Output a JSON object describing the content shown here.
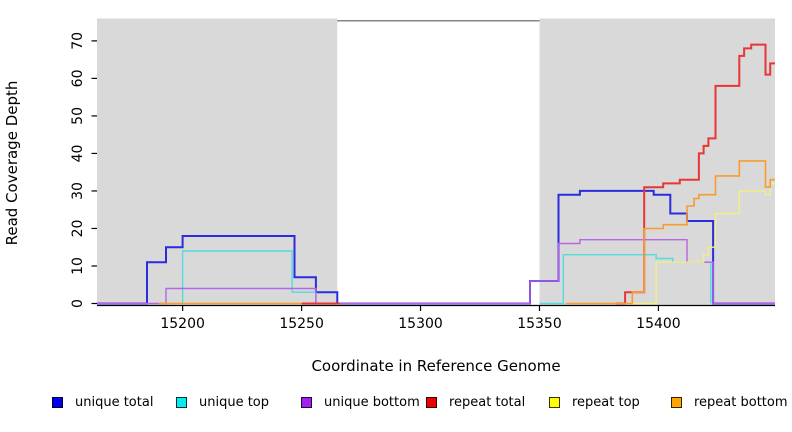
{
  "chart_data": {
    "type": "line",
    "variant": "step",
    "title": "",
    "xlabel": "Coordinate in Reference Genome",
    "ylabel": "Read Coverage Depth",
    "xlim": [
      15164,
      15449
    ],
    "ylim": [
      0,
      74.5
    ],
    "x_ticks": [
      15200,
      15250,
      15300,
      15350,
      15400
    ],
    "y_ticks": [
      0,
      10,
      20,
      30,
      40,
      50,
      60,
      70
    ],
    "grid": false,
    "legend_position": "bottom",
    "plot_background": "#ffffff",
    "shaded_color": "#d9d9d9",
    "shaded_regions": [
      [
        15164,
        15265
      ],
      [
        15350,
        15449
      ]
    ],
    "series": [
      {
        "name": "unique total",
        "color": "#2c2cdf",
        "legend_fill": "#0000ee",
        "width": 2,
        "segments": [
          [
            [
              15164,
              0
            ],
            [
              15185,
              11
            ],
            [
              15193,
              15
            ],
            [
              15200,
              18
            ],
            [
              15247,
              7
            ],
            [
              15256,
              3
            ],
            [
              15265,
              0
            ],
            [
              15346,
              6
            ],
            [
              15358,
              29
            ],
            [
              15367,
              30
            ],
            [
              15398,
              29
            ],
            [
              15405,
              24
            ],
            [
              15412,
              22
            ],
            [
              15423,
              0
            ],
            [
              15449,
              0
            ]
          ]
        ]
      },
      {
        "name": "unique top",
        "color": "#4fdde0",
        "legend_fill": "#00eeee",
        "width": 1.4,
        "segments": [
          [
            [
              15200,
              0
            ],
            [
              15200,
              14
            ],
            [
              15246,
              3
            ],
            [
              15256,
              0
            ]
          ],
          [
            [
              15350,
              0
            ],
            [
              15360,
              13
            ],
            [
              15399,
              12
            ],
            [
              15406,
              11
            ],
            [
              15422,
              0
            ]
          ]
        ]
      },
      {
        "name": "unique bottom",
        "color": "#b565e6",
        "legend_fill": "#a020f0",
        "width": 1.4,
        "segments": [
          [
            [
              15164,
              0
            ],
            [
              15193,
              4
            ],
            [
              15256,
              0
            ],
            [
              15346,
              6
            ],
            [
              15358,
              16
            ],
            [
              15367,
              17
            ],
            [
              15412,
              11
            ],
            [
              15423,
              0
            ],
            [
              15449,
              0
            ]
          ]
        ]
      },
      {
        "name": "repeat total",
        "color": "#e93535",
        "legend_fill": "#ee0000",
        "width": 2,
        "segments": [
          [
            [
              15250,
              0
            ],
            [
              15266,
              0
            ]
          ],
          [
            [
              15382,
              0
            ],
            [
              15386,
              3
            ],
            [
              15394,
              31
            ],
            [
              15402,
              32
            ],
            [
              15409,
              33
            ],
            [
              15417,
              40
            ],
            [
              15419,
              42
            ],
            [
              15421,
              44
            ],
            [
              15424,
              58
            ],
            [
              15434,
              66
            ],
            [
              15436,
              68
            ],
            [
              15439,
              69
            ],
            [
              15445,
              61
            ],
            [
              15447,
              64
            ],
            [
              15449,
              64
            ]
          ]
        ]
      },
      {
        "name": "repeat top",
        "color": "#f1ee85",
        "legend_fill": "#ffff00",
        "width": 1.4,
        "segments": [
          [
            [
              15386,
              0
            ],
            [
              15399,
              11
            ],
            [
              15419,
              13
            ],
            [
              15421,
              15
            ],
            [
              15424,
              24
            ],
            [
              15434,
              30
            ],
            [
              15445,
              29
            ],
            [
              15447,
              32
            ],
            [
              15449,
              32
            ]
          ]
        ]
      },
      {
        "name": "repeat bottom",
        "color": "#f89c2d",
        "legend_fill": "#ffa500",
        "width": 1.6,
        "segments": [
          [
            [
              15190,
              0
            ],
            [
              15250,
              0
            ]
          ],
          [
            [
              15361,
              0
            ],
            [
              15389,
              3
            ],
            [
              15394,
              20
            ],
            [
              15402,
              21
            ],
            [
              15412,
              26
            ],
            [
              15415,
              28
            ],
            [
              15417,
              29
            ],
            [
              15424,
              34
            ],
            [
              15434,
              38
            ],
            [
              15445,
              31
            ],
            [
              15447,
              33
            ],
            [
              15449,
              33
            ]
          ]
        ]
      }
    ]
  }
}
